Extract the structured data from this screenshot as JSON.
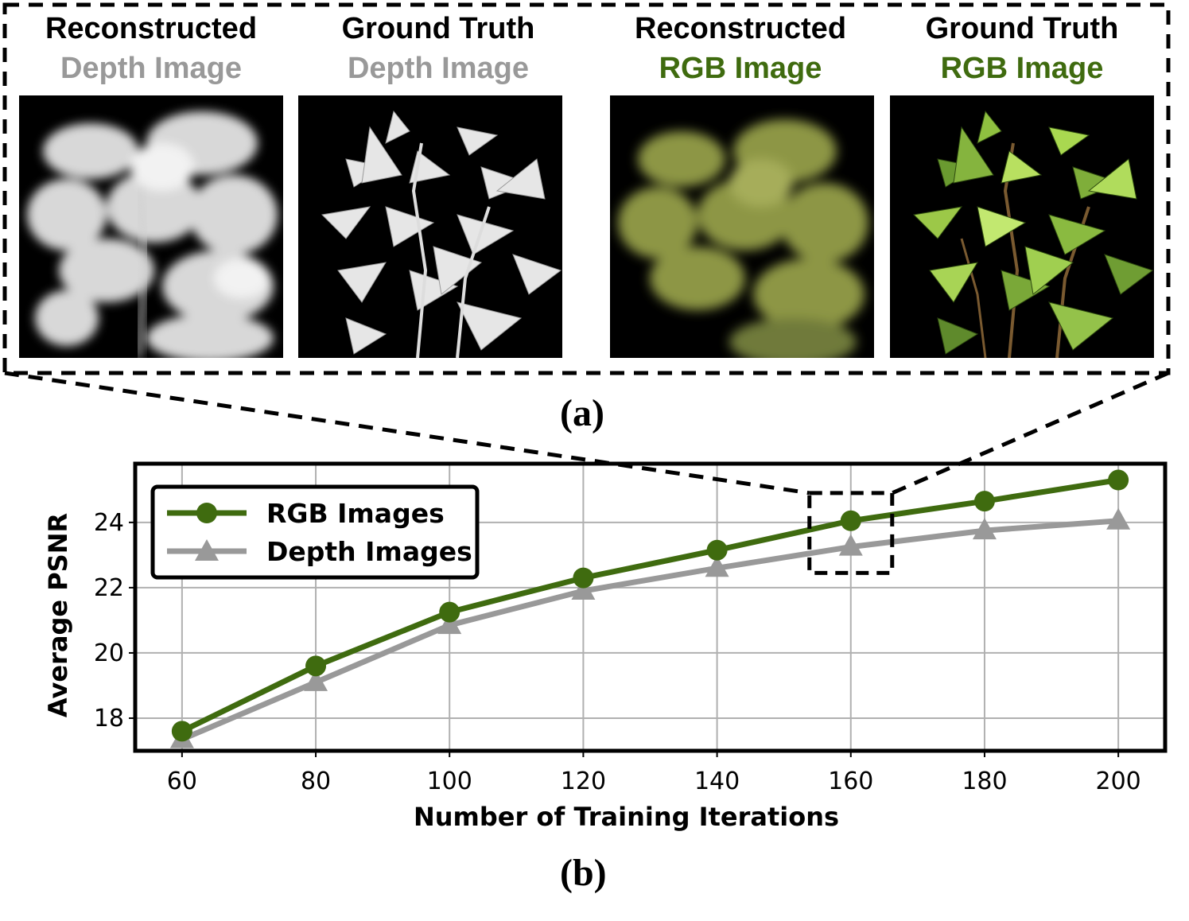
{
  "panel_a": {
    "label": "(a)",
    "panels": [
      {
        "title": "Reconstructed",
        "subtitle": "Depth Image",
        "subtitle_color": "#999999",
        "kind": "depth-reconstructed"
      },
      {
        "title": "Ground Truth",
        "subtitle": "Depth Image",
        "subtitle_color": "#999999",
        "kind": "depth-ground-truth"
      },
      {
        "title": "Reconstructed",
        "subtitle": "RGB Image",
        "subtitle_color": "#3f6b0f",
        "kind": "rgb-reconstructed"
      },
      {
        "title": "Ground Truth",
        "subtitle": "RGB Image",
        "subtitle_color": "#3f6b0f",
        "kind": "rgb-ground-truth"
      }
    ]
  },
  "panel_b": {
    "label": "(b)"
  },
  "chart_data": {
    "type": "line",
    "x": [
      60,
      80,
      100,
      120,
      140,
      160,
      180,
      200
    ],
    "series": [
      {
        "name": "RGB Images",
        "values": [
          17.6,
          19.6,
          21.25,
          22.3,
          23.15,
          24.05,
          24.65,
          25.3
        ],
        "color": "#3f6b0f",
        "marker": "circle"
      },
      {
        "name": "Depth Images",
        "values": [
          17.35,
          19.1,
          20.85,
          21.9,
          22.6,
          23.25,
          23.75,
          24.05
        ],
        "color": "#999999",
        "marker": "triangle"
      }
    ],
    "xlabel": "Number of Training Iterations",
    "ylabel": "Average PSNR",
    "xticks": [
      60,
      80,
      100,
      120,
      140,
      160,
      180,
      200
    ],
    "yticks": [
      18,
      20,
      22,
      24
    ],
    "xlim": [
      53,
      207
    ],
    "ylim": [
      17.0,
      25.8
    ],
    "grid": true,
    "legend_position": "top-left",
    "highlight_x": 160
  }
}
